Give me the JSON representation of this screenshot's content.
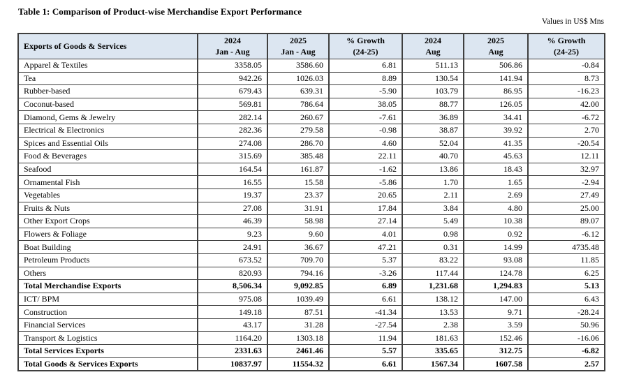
{
  "title": "Table 1: Comparison of Product-wise Merchandise Export Performance",
  "units_note": "Values in US$ Mns",
  "chart_data": {
    "type": "table",
    "title": "Table 1: Comparison of Product-wise Merchandise Export Performance",
    "units": "Values in US$ Mns",
    "columns": [
      "Exports of Goods & Services",
      "2024 Jan - Aug",
      "2025 Jan - Aug",
      "% Growth (24-25)",
      "2024 Aug",
      "2025 Aug",
      "% Growth (24-25)"
    ]
  },
  "table": {
    "header": {
      "col0": "Exports of Goods & Services",
      "cols": [
        {
          "line1": "2024",
          "line2": "Jan - Aug"
        },
        {
          "line1": "2025",
          "line2": "Jan - Aug"
        },
        {
          "line1": "% Growth",
          "line2": "(24-25)"
        },
        {
          "line1": "2024",
          "line2": "Aug"
        },
        {
          "line1": "2025",
          "line2": "Aug"
        },
        {
          "line1": "% Growth",
          "line2": "(24-25)"
        }
      ]
    },
    "rows": [
      {
        "label": "Apparel & Textiles",
        "values": [
          "3358.05",
          "3586.60",
          "6.81",
          "511.13",
          "506.86",
          "-0.84"
        ],
        "bold": false
      },
      {
        "label": "Tea",
        "values": [
          "942.26",
          "1026.03",
          "8.89",
          "130.54",
          "141.94",
          "8.73"
        ],
        "bold": false
      },
      {
        "label": "Rubber-based",
        "values": [
          "679.43",
          "639.31",
          "-5.90",
          "103.79",
          "86.95",
          "-16.23"
        ],
        "bold": false
      },
      {
        "label": "Coconut-based",
        "values": [
          "569.81",
          "786.64",
          "38.05",
          "88.77",
          "126.05",
          "42.00"
        ],
        "bold": false
      },
      {
        "label": "Diamond, Gems & Jewelry",
        "values": [
          "282.14",
          "260.67",
          "-7.61",
          "36.89",
          "34.41",
          "-6.72"
        ],
        "bold": false
      },
      {
        "label": "Electrical & Electronics",
        "values": [
          "282.36",
          "279.58",
          "-0.98",
          "38.87",
          "39.92",
          "2.70"
        ],
        "bold": false
      },
      {
        "label": "Spices and Essential Oils",
        "values": [
          "274.08",
          "286.70",
          "4.60",
          "52.04",
          "41.35",
          "-20.54"
        ],
        "bold": false
      },
      {
        "label": "Food & Beverages",
        "values": [
          "315.69",
          "385.48",
          "22.11",
          "40.70",
          "45.63",
          "12.11"
        ],
        "bold": false
      },
      {
        "label": "Seafood",
        "values": [
          "164.54",
          "161.87",
          "-1.62",
          "13.86",
          "18.43",
          "32.97"
        ],
        "bold": false
      },
      {
        "label": "Ornamental Fish",
        "values": [
          "16.55",
          "15.58",
          "-5.86",
          "1.70",
          "1.65",
          "-2.94"
        ],
        "bold": false
      },
      {
        "label": "Vegetables",
        "values": [
          "19.37",
          "23.37",
          "20.65",
          "2.11",
          "2.69",
          "27.49"
        ],
        "bold": false
      },
      {
        "label": "Fruits & Nuts",
        "values": [
          "27.08",
          "31.91",
          "17.84",
          "3.84",
          "4.80",
          "25.00"
        ],
        "bold": false
      },
      {
        "label": "Other Export Crops",
        "values": [
          "46.39",
          "58.98",
          "27.14",
          "5.49",
          "10.38",
          "89.07"
        ],
        "bold": false
      },
      {
        "label": "Flowers & Foliage",
        "values": [
          "9.23",
          "9.60",
          "4.01",
          "0.98",
          "0.92",
          "-6.12"
        ],
        "bold": false
      },
      {
        "label": "Boat Building",
        "values": [
          "24.91",
          "36.67",
          "47.21",
          "0.31",
          "14.99",
          "4735.48"
        ],
        "bold": false
      },
      {
        "label": "Petroleum Products",
        "values": [
          "673.52",
          "709.70",
          "5.37",
          "83.22",
          "93.08",
          "11.85"
        ],
        "bold": false
      },
      {
        "label": "Others",
        "values": [
          "820.93",
          "794.16",
          "-3.26",
          "117.44",
          "124.78",
          "6.25"
        ],
        "bold": false
      },
      {
        "label": "Total Merchandise Exports",
        "values": [
          "8,506.34",
          "9,092.85",
          "6.89",
          "1,231.68",
          "1,294.83",
          "5.13"
        ],
        "bold": true
      },
      {
        "label": "ICT/ BPM",
        "values": [
          "975.08",
          "1039.49",
          "6.61",
          "138.12",
          "147.00",
          "6.43"
        ],
        "bold": false
      },
      {
        "label": "Construction",
        "values": [
          "149.18",
          "87.51",
          "-41.34",
          "13.53",
          "9.71",
          "-28.24"
        ],
        "bold": false
      },
      {
        "label": "Financial Services",
        "values": [
          "43.17",
          "31.28",
          "-27.54",
          "2.38",
          "3.59",
          "50.96"
        ],
        "bold": false
      },
      {
        "label": "Transport & Logistics",
        "values": [
          "1164.20",
          "1303.18",
          "11.94",
          "181.63",
          "152.46",
          "-16.06"
        ],
        "bold": false
      },
      {
        "label": "Total Services Exports",
        "values": [
          "2331.63",
          "2461.46",
          "5.57",
          "335.65",
          "312.75",
          "-6.82"
        ],
        "bold": true
      },
      {
        "label": "Total Goods & Services Exports",
        "values": [
          "10837.97",
          "11554.32",
          "6.61",
          "1567.34",
          "1607.58",
          "2.57"
        ],
        "bold": true
      }
    ]
  }
}
